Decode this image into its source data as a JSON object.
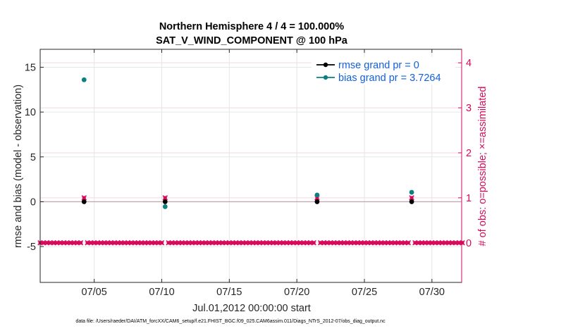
{
  "chart_data": {
    "type": "scatter",
    "title": "Northern Hemisphere 4 / 4 = 100.000%",
    "subtitle": "SAT_V_WIND_COMPONENT @ 100 hPa",
    "xlabel": "Jul.01,2012 00:00:00 start",
    "ylabel_left": "rmse and bias (model - observation)",
    "ylabel_right": "# of obs: o=possible; ×=assimilated",
    "xlim": [
      1,
      32.2
    ],
    "ylim_left": [
      -9,
      17
    ],
    "ylim_right": [
      -0.88,
      4.3
    ],
    "x_ticks": [
      5,
      10,
      15,
      20,
      25,
      30
    ],
    "x_tick_labels": [
      "07/05",
      "07/10",
      "07/15",
      "07/20",
      "07/25",
      "07/30"
    ],
    "y_ticks_left": [
      -5,
      0,
      5,
      10,
      15
    ],
    "y_tick_labels_left": [
      "-5",
      "0",
      "5",
      "10",
      "15"
    ],
    "y_ticks_right": [
      0,
      1,
      2,
      3,
      4
    ],
    "y_tick_labels_right": [
      "0",
      "1",
      "2",
      "3",
      "4"
    ],
    "grid": true,
    "legend_position": "top-right",
    "zero_line_left": 0,
    "series": [
      {
        "name": "rmse grand pr = 0",
        "axis": "left",
        "color": "#000000",
        "points": [
          [
            4.25,
            0
          ],
          [
            10.25,
            0
          ],
          [
            21.5,
            0
          ],
          [
            28.5,
            0
          ]
        ]
      },
      {
        "name": "bias grand pr = 3.7264",
        "axis": "left",
        "color": "#0a8080",
        "points": [
          [
            4.25,
            13.6
          ],
          [
            10.25,
            -0.55
          ],
          [
            21.5,
            0.75
          ],
          [
            28.5,
            1.05
          ]
        ]
      },
      {
        "name": "obs possible",
        "axis": "right",
        "color": "#d6095a",
        "marker": "circle",
        "range": [
          1,
          32.2
        ],
        "step": 0.25,
        "default": 0,
        "nonzero": [
          [
            4.25,
            1
          ],
          [
            10.25,
            1
          ],
          [
            21.5,
            1
          ],
          [
            28.5,
            1
          ]
        ]
      },
      {
        "name": "obs assimilated",
        "axis": "right",
        "color": "#d6095a",
        "marker": "x",
        "range": [
          1,
          32.2
        ],
        "step": 0.25,
        "default": 0,
        "nonzero": [
          [
            4.25,
            1
          ],
          [
            10.25,
            1
          ],
          [
            21.5,
            1
          ],
          [
            28.5,
            1
          ]
        ]
      }
    ]
  },
  "footer": "data file: /Users/raeder/DAI/ATM_forcXX/CAM6_setup/f.e21.FHIST_BGC.f09_025.CAM6assim.011/Diags_NTrS_2012-07/obs_diag_output.nc"
}
